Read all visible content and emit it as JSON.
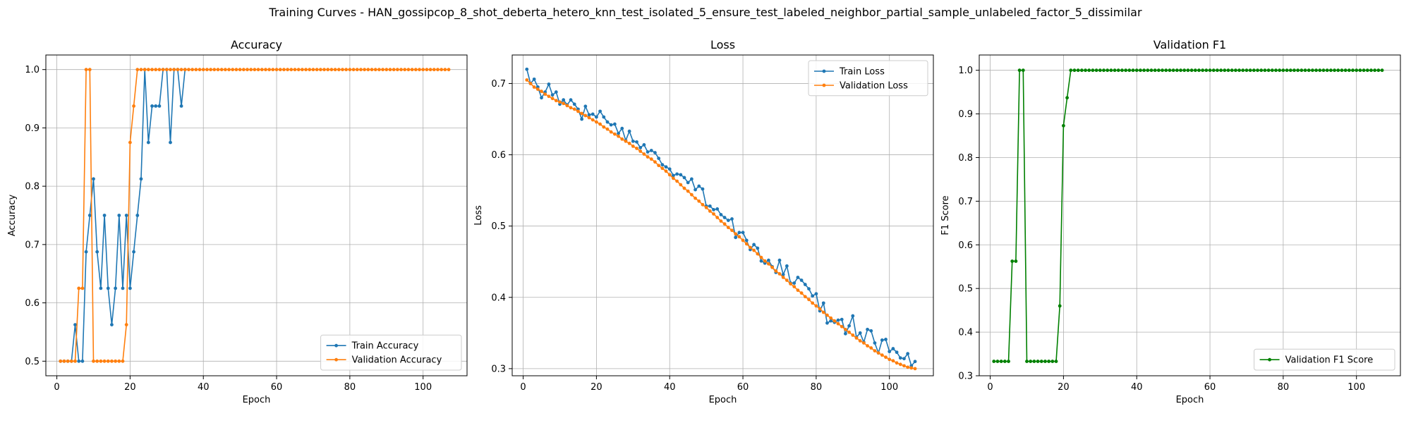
{
  "figure_title": "Training Curves - HAN_gossipcop_8_shot_deberta_hetero_knn_test_isolated_5_ensure_test_labeled_neighbor_partial_sample_unlabeled_factor_5_dissimilar",
  "colors": {
    "blue": "#1f77b4",
    "orange": "#ff7f0e",
    "green": "#008000",
    "grid": "#b0b0b0"
  },
  "chart_data": [
    {
      "type": "line",
      "title": "Accuracy",
      "xlabel": "Epoch",
      "ylabel": "Accuracy",
      "xlim": [
        -3,
        112
      ],
      "ylim": [
        0.475,
        1.025
      ],
      "xticks": [
        0,
        20,
        40,
        60,
        80,
        100
      ],
      "yticks": [
        0.5,
        0.6,
        0.7,
        0.8,
        0.9,
        1.0
      ],
      "ytick_decimals": 1,
      "grid": true,
      "legend": "lower-right",
      "series": [
        {
          "name": "Train Accuracy",
          "color": "#1f77b4",
          "x_start": 1,
          "values": [
            0.5,
            0.5,
            0.5,
            0.5,
            0.5625,
            0.5,
            0.5,
            0.6875,
            0.75,
            0.8125,
            0.6875,
            0.625,
            0.75,
            0.625,
            0.5625,
            0.625,
            0.75,
            0.625,
            0.75,
            0.625,
            0.6875,
            0.75,
            0.8125,
            1.0,
            0.875,
            0.9375,
            0.9375,
            0.9375,
            1.0,
            1.0,
            0.875,
            1.0,
            1.0,
            0.9375,
            1.0
          ]
        },
        {
          "name": "Validation Accuracy",
          "color": "#ff7f0e",
          "x_start": 1,
          "values": [
            0.5,
            0.5,
            0.5,
            0.5,
            0.5,
            0.625,
            0.625,
            1.0,
            1.0,
            0.5,
            0.5,
            0.5,
            0.5,
            0.5,
            0.5,
            0.5,
            0.5,
            0.5,
            0.5625,
            0.875,
            0.9375,
            1.0,
            1.0,
            1.0,
            1.0,
            1.0,
            1.0,
            1.0,
            1.0,
            1.0,
            1.0,
            1.0,
            1.0,
            1.0,
            1.0,
            1.0,
            1.0,
            1.0,
            1.0,
            1.0,
            1.0,
            1.0,
            1.0,
            1.0,
            1.0,
            1.0,
            1.0,
            1.0,
            1.0,
            1.0,
            1.0,
            1.0,
            1.0,
            1.0,
            1.0,
            1.0,
            1.0,
            1.0,
            1.0,
            1.0,
            1.0,
            1.0,
            1.0,
            1.0,
            1.0,
            1.0,
            1.0,
            1.0,
            1.0,
            1.0,
            1.0,
            1.0,
            1.0,
            1.0,
            1.0,
            1.0,
            1.0,
            1.0,
            1.0,
            1.0,
            1.0,
            1.0,
            1.0,
            1.0,
            1.0,
            1.0,
            1.0,
            1.0,
            1.0,
            1.0,
            1.0,
            1.0,
            1.0,
            1.0,
            1.0,
            1.0,
            1.0,
            1.0,
            1.0,
            1.0,
            1.0,
            1.0,
            1.0,
            1.0,
            1.0,
            1.0,
            1.0
          ]
        }
      ]
    },
    {
      "type": "line",
      "title": "Loss",
      "xlabel": "Epoch",
      "ylabel": "Loss",
      "xlim": [
        -3,
        112
      ],
      "ylim": [
        0.29,
        0.74
      ],
      "xticks": [
        0,
        20,
        40,
        60,
        80,
        100
      ],
      "yticks": [
        0.3,
        0.4,
        0.5,
        0.6,
        0.7
      ],
      "ytick_decimals": 1,
      "grid": true,
      "legend": "top-right",
      "series": [
        {
          "name": "Train Loss",
          "color": "#1f77b4",
          "x_start": 1,
          "values": [
            0.72,
            0.7,
            0.706,
            0.695,
            0.68,
            0.688,
            0.699,
            0.684,
            0.688,
            0.671,
            0.677,
            0.67,
            0.677,
            0.671,
            0.664,
            0.65,
            0.668,
            0.656,
            0.657,
            0.653,
            0.661,
            0.653,
            0.646,
            0.642,
            0.643,
            0.63,
            0.637,
            0.62,
            0.633,
            0.619,
            0.618,
            0.61,
            0.614,
            0.604,
            0.606,
            0.603,
            0.595,
            0.586,
            0.583,
            0.58,
            0.571,
            0.573,
            0.572,
            0.568,
            0.561,
            0.566,
            0.551,
            0.556,
            0.552,
            0.528,
            0.528,
            0.523,
            0.524,
            0.516,
            0.512,
            0.508,
            0.51,
            0.484,
            0.491,
            0.491,
            0.48,
            0.467,
            0.474,
            0.469,
            0.451,
            0.448,
            0.452,
            0.443,
            0.435,
            0.452,
            0.432,
            0.444,
            0.42,
            0.42,
            0.428,
            0.424,
            0.418,
            0.412,
            0.402,
            0.405,
            0.381,
            0.392,
            0.364,
            0.367,
            0.365,
            0.368,
            0.369,
            0.349,
            0.36,
            0.374,
            0.344,
            0.35,
            0.337,
            0.355,
            0.353,
            0.336,
            0.322,
            0.34,
            0.341,
            0.324,
            0.328,
            0.323,
            0.315,
            0.314,
            0.321,
            0.304,
            0.31
          ]
        },
        {
          "name": "Validation Loss",
          "color": "#ff7f0e",
          "x_start": 1,
          "values": [
            0.705,
            0.7,
            0.695,
            0.692,
            0.689,
            0.685,
            0.682,
            0.679,
            0.676,
            0.674,
            0.672,
            0.669,
            0.666,
            0.664,
            0.661,
            0.658,
            0.655,
            0.652,
            0.649,
            0.646,
            0.643,
            0.639,
            0.636,
            0.632,
            0.629,
            0.626,
            0.622,
            0.619,
            0.616,
            0.612,
            0.609,
            0.605,
            0.601,
            0.597,
            0.594,
            0.59,
            0.585,
            0.581,
            0.577,
            0.572,
            0.567,
            0.563,
            0.558,
            0.553,
            0.549,
            0.544,
            0.539,
            0.535,
            0.53,
            0.526,
            0.521,
            0.517,
            0.512,
            0.507,
            0.503,
            0.498,
            0.494,
            0.489,
            0.485,
            0.48,
            0.475,
            0.47,
            0.466,
            0.461,
            0.456,
            0.451,
            0.447,
            0.442,
            0.437,
            0.433,
            0.428,
            0.424,
            0.419,
            0.415,
            0.41,
            0.406,
            0.401,
            0.397,
            0.392,
            0.388,
            0.384,
            0.379,
            0.375,
            0.371,
            0.367,
            0.363,
            0.359,
            0.355,
            0.351,
            0.347,
            0.343,
            0.339,
            0.336,
            0.332,
            0.329,
            0.325,
            0.322,
            0.319,
            0.316,
            0.313,
            0.311,
            0.308,
            0.306,
            0.304,
            0.302,
            0.301,
            0.3
          ]
        }
      ]
    },
    {
      "type": "line",
      "title": "Validation F1",
      "xlabel": "Epoch",
      "ylabel": "F1 Score",
      "xlim": [
        -3,
        112
      ],
      "ylim": [
        0.3,
        1.035
      ],
      "xticks": [
        0,
        20,
        40,
        60,
        80,
        100
      ],
      "yticks": [
        0.3,
        0.4,
        0.5,
        0.6,
        0.7,
        0.8,
        0.9,
        1.0
      ],
      "ytick_decimals": 1,
      "grid": true,
      "legend": "lower-right",
      "series": [
        {
          "name": "Validation F1 Score",
          "color": "#008000",
          "x_start": 1,
          "values": [
            0.333,
            0.333,
            0.333,
            0.333,
            0.333,
            0.5625,
            0.5625,
            1.0,
            1.0,
            0.333,
            0.333,
            0.333,
            0.333,
            0.333,
            0.333,
            0.333,
            0.333,
            0.333,
            0.46,
            0.873,
            0.937,
            1.0,
            1.0,
            1.0,
            1.0,
            1.0,
            1.0,
            1.0,
            1.0,
            1.0,
            1.0,
            1.0,
            1.0,
            1.0,
            1.0,
            1.0,
            1.0,
            1.0,
            1.0,
            1.0,
            1.0,
            1.0,
            1.0,
            1.0,
            1.0,
            1.0,
            1.0,
            1.0,
            1.0,
            1.0,
            1.0,
            1.0,
            1.0,
            1.0,
            1.0,
            1.0,
            1.0,
            1.0,
            1.0,
            1.0,
            1.0,
            1.0,
            1.0,
            1.0,
            1.0,
            1.0,
            1.0,
            1.0,
            1.0,
            1.0,
            1.0,
            1.0,
            1.0,
            1.0,
            1.0,
            1.0,
            1.0,
            1.0,
            1.0,
            1.0,
            1.0,
            1.0,
            1.0,
            1.0,
            1.0,
            1.0,
            1.0,
            1.0,
            1.0,
            1.0,
            1.0,
            1.0,
            1.0,
            1.0,
            1.0,
            1.0,
            1.0,
            1.0,
            1.0,
            1.0,
            1.0,
            1.0,
            1.0,
            1.0,
            1.0,
            1.0,
            1.0
          ]
        }
      ]
    }
  ]
}
